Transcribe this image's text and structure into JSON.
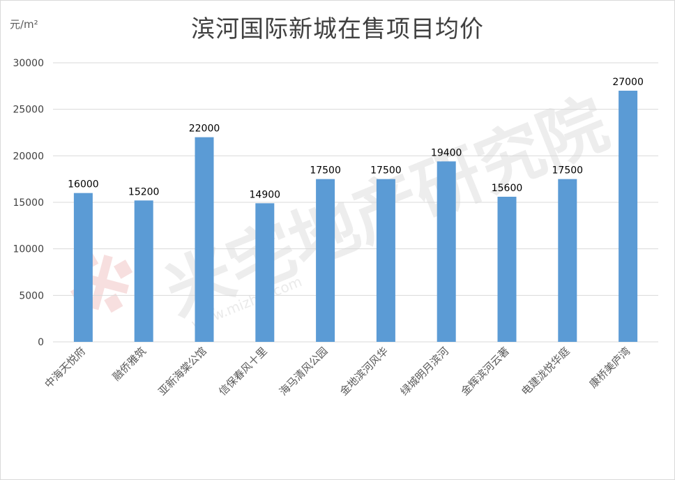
{
  "chart_data": {
    "type": "bar",
    "title": "滨河国际新城在售项目均价",
    "unit_label": "元/m²",
    "categories": [
      "中海天悦府",
      "融侨雅筑",
      "亚新海棠公馆",
      "信保春风十里",
      "海马清风公园",
      "金地滨河风华",
      "绿城明月滨河",
      "金辉滨河云著",
      "电建泷悦华庭",
      "康桥美庐湾"
    ],
    "values": [
      16000,
      15200,
      22000,
      14900,
      17500,
      17500,
      19400,
      15600,
      17500,
      27000
    ],
    "ylim": [
      0,
      30000
    ],
    "yticks": [
      0,
      5000,
      10000,
      15000,
      20000,
      25000,
      30000
    ],
    "grid": true,
    "bar_color": "#5b9bd5",
    "gridline_color": "#d9d9d9"
  },
  "watermark": {
    "brand": "米宅地产研究院",
    "url": "www.mizhai.com",
    "color": "#e6e6e6",
    "logo_color": "#f2c6c6"
  }
}
